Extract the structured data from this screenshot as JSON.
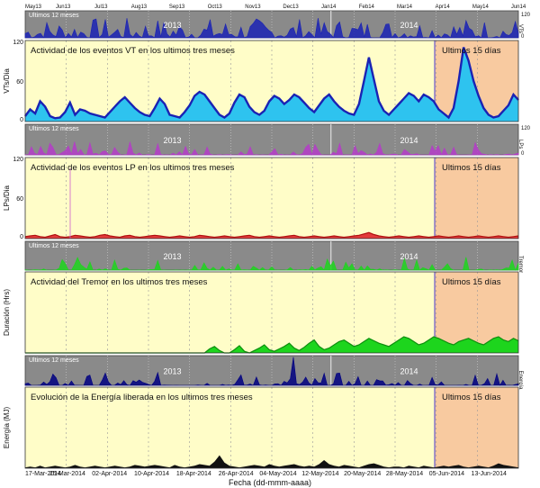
{
  "figure": {
    "xlabel": "Fecha (dd-mmm-aaaa)",
    "x_ticks": [
      "17-Mar-2014",
      "25-Mar-2014",
      "02-Apr-2014",
      "10-Apr-2014",
      "18-Apr-2014",
      "26-Apr-2014",
      "04-May-2014",
      "12-May-2014",
      "20-May-2014",
      "28-May-2014",
      "05-Jun-2014",
      "13-Jun-2014"
    ],
    "strip_label": "Ultimos 12 meses",
    "strip_years": [
      "2013",
      "2014"
    ],
    "recent_label": "Ultimos 15 días",
    "month_ticks": [
      "May13",
      "Jun13",
      "Jul13",
      "Aug13",
      "Sep13",
      "Oct13",
      "Nov13",
      "Dec13",
      "Jan14",
      "Feb14",
      "Mar14",
      "Apr14",
      "May14",
      "Jun14"
    ]
  },
  "colors": {
    "beige": "#fffdc8",
    "orange": "#f8caa0",
    "strip_gray": "#8a8a8a",
    "vt_fill": "#2ec3ef",
    "vt_line": "#1a22b4",
    "lp_fill": "#e23a3a",
    "lp_line": "#b01010",
    "tremor_fill": "#1dd51d",
    "tremor_line": "#0e8e0e",
    "energy_fill": "#111111",
    "recent_line": "#6a5acd"
  },
  "chart_data": [
    {
      "id": "vt",
      "type": "area",
      "title": "Actividad de los eventos VT en los ultimos tres meses",
      "ylabel": "VTs/Dia",
      "ylim": [
        0,
        120
      ],
      "y_ticks": [
        "0",
        "60",
        "120"
      ],
      "strip_ticks": [
        "0",
        "120"
      ],
      "strip_ylabel": "VTs",
      "x_start": "2014-03-17",
      "x_end": "2014-06-18",
      "recent_start": "2014-06-03",
      "series": [
        {
          "values": [
            8,
            18,
            12,
            30,
            22,
            8,
            5,
            6,
            14,
            28,
            10,
            18,
            16,
            12,
            10,
            8,
            6,
            14,
            22,
            30,
            36,
            28,
            20,
            14,
            10,
            8,
            20,
            34,
            26,
            10,
            8,
            6,
            14,
            24,
            38,
            44,
            40,
            30,
            20,
            10,
            6,
            12,
            28,
            40,
            36,
            22,
            14,
            10,
            16,
            30,
            38,
            34,
            26,
            32,
            40,
            36,
            28,
            20,
            14,
            24,
            34,
            40,
            30,
            22,
            16,
            12,
            10,
            26,
            60,
            95,
            62,
            30,
            16,
            10,
            18,
            26,
            34,
            42,
            38,
            30,
            40,
            36,
            30,
            18,
            12,
            6,
            20,
            60,
            110,
            90,
            60,
            38,
            20,
            10,
            6,
            8,
            16,
            24,
            40,
            32
          ]
        }
      ]
    },
    {
      "id": "lp",
      "type": "area",
      "title": "Actividad de los eventos LP en los ultimos tres meses",
      "ylabel": "LPs/Dia",
      "ylim": [
        0,
        120
      ],
      "y_ticks": [
        "0",
        "60",
        "120"
      ],
      "strip_ticks": [
        "0",
        "120"
      ],
      "strip_ylabel": "LPs",
      "recent_start": "2014-06-03",
      "series": [
        {
          "values": [
            3,
            4,
            5,
            3,
            2,
            4,
            6,
            3,
            2,
            3,
            5,
            4,
            3,
            2,
            3,
            5,
            6,
            4,
            3,
            2,
            4,
            5,
            3,
            2,
            3,
            4,
            5,
            4,
            3,
            2,
            3,
            4,
            3,
            2,
            3,
            5,
            4,
            3,
            2,
            3,
            4,
            3,
            2,
            3,
            4,
            5,
            3,
            2,
            3,
            4,
            3,
            2,
            3,
            4,
            5,
            3,
            2,
            3,
            4,
            3,
            2,
            3,
            4,
            3,
            2,
            3,
            4,
            5,
            7,
            9,
            6,
            4,
            3,
            2,
            3,
            4,
            3,
            2,
            3,
            4,
            3,
            2,
            3,
            4,
            3,
            2,
            3,
            4,
            3,
            2,
            3,
            4,
            3,
            2,
            3,
            4,
            3,
            2,
            3,
            4
          ]
        }
      ]
    },
    {
      "id": "tremor",
      "type": "area",
      "title": "Actividad del Tremor en los ultimos tres meses",
      "ylabel": "Duración (Hrs)",
      "ylim": [
        0,
        1
      ],
      "y_ticks": [],
      "strip_ticks": [],
      "strip_ylabel": "Tremor",
      "recent_start": "2014-06-03",
      "series": [
        {
          "values": [
            0,
            0,
            0,
            0,
            0,
            0,
            0,
            0,
            0,
            0,
            0,
            0,
            0,
            0,
            0,
            0,
            0,
            0,
            0,
            0,
            0,
            0,
            0,
            0,
            0,
            0,
            0,
            0,
            0,
            0,
            0,
            0,
            0,
            0,
            0,
            0,
            0,
            0.05,
            0.08,
            0.03,
            0,
            0,
            0.04,
            0.09,
            0.02,
            0,
            0.03,
            0.06,
            0.1,
            0.04,
            0.02,
            0.05,
            0.08,
            0.12,
            0.06,
            0.03,
            0.07,
            0.12,
            0.16,
            0.08,
            0.04,
            0.06,
            0.1,
            0.14,
            0.16,
            0.12,
            0.08,
            0.1,
            0.14,
            0.18,
            0.15,
            0.12,
            0.1,
            0.08,
            0.12,
            0.16,
            0.2,
            0.18,
            0.14,
            0.1,
            0.12,
            0.16,
            0.2,
            0.18,
            0.15,
            0.12,
            0.1,
            0.14,
            0.16,
            0.18,
            0.15,
            0.12,
            0.1,
            0.14,
            0.18,
            0.2,
            0.16,
            0.14,
            0.18,
            0.15
          ]
        }
      ]
    },
    {
      "id": "energy",
      "type": "area",
      "title": "Evolución de la Energía liberada en los ultimos tres meses",
      "ylabel": "Energía (MJ)",
      "ylim": [
        0,
        1
      ],
      "y_ticks": [],
      "strip_ticks": [],
      "strip_ylabel": "Energía",
      "recent_start": "2014-06-03",
      "series": [
        {
          "values": [
            0.01,
            0.02,
            0.01,
            0.03,
            0.01,
            0.02,
            0.03,
            0.02,
            0.01,
            0.02,
            0.04,
            0.02,
            0.01,
            0.02,
            0.03,
            0.02,
            0.01,
            0.02,
            0.03,
            0.02,
            0.01,
            0.02,
            0.04,
            0.03,
            0.02,
            0.03,
            0.04,
            0.03,
            0.02,
            0.01,
            0.04,
            0.02,
            0.01,
            0.02,
            0.03,
            0.05,
            0.04,
            0.03,
            0.08,
            0.16,
            0.07,
            0.03,
            0.02,
            0.01,
            0.02,
            0.03,
            0.04,
            0.03,
            0.02,
            0.05,
            0.03,
            0.02,
            0.03,
            0.04,
            0.05,
            0.03,
            0.02,
            0.03,
            0.02,
            0.05,
            0.1,
            0.05,
            0.03,
            0.02,
            0.04,
            0.03,
            0.02,
            0.01,
            0.03,
            0.05,
            0.06,
            0.04,
            0.02,
            0.01,
            0.02,
            0.02,
            0.01,
            0.03,
            0.02,
            0.01,
            0.03,
            0.02,
            0.01,
            0.02,
            0.03,
            0.02,
            0.03,
            0.04,
            0.02,
            0.01,
            0.02,
            0.03,
            0.02,
            0.01,
            0.03,
            0.06,
            0.04,
            0.03,
            0.02,
            0.01
          ]
        }
      ]
    }
  ]
}
